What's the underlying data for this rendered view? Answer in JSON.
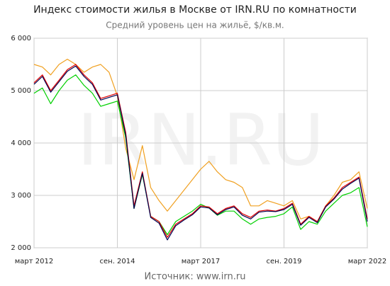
{
  "chart_data": {
    "type": "line",
    "title": "Индекс стоимости жилья в Москве от IRN.RU по комнатности",
    "subtitle": "Средний уровень цен на жильё, $/кв.м.",
    "source": "Источник: www.irn.ru",
    "watermark": "IRN.RU",
    "categories": [
      "март 2012",
      null,
      null,
      null,
      null,
      null,
      null,
      null,
      null,
      null,
      "сен. 2014",
      null,
      null,
      null,
      null,
      null,
      null,
      null,
      null,
      null,
      "март 2017",
      null,
      null,
      null,
      null,
      null,
      null,
      null,
      null,
      null,
      "сен. 2019",
      null,
      null,
      null,
      null,
      null,
      null,
      null,
      null,
      null,
      "март 2022"
    ],
    "series": [
      {
        "color": "#f0a020",
        "values": [
          5500,
          5450,
          5300,
          5500,
          5600,
          5500,
          5350,
          5450,
          5500,
          5350,
          4900,
          3900,
          3300,
          3950,
          3150,
          2900,
          2700,
          2900,
          3100,
          3300,
          3500,
          3650,
          3450,
          3300,
          3250,
          3150,
          2800,
          2800,
          2900,
          2850,
          2800,
          2900,
          2550,
          2600,
          2500,
          2800,
          3000,
          3250,
          3300,
          3450,
          2750
        ]
      },
      {
        "color": "#00d000",
        "values": [
          4950,
          5050,
          4750,
          5000,
          5200,
          5300,
          5100,
          4950,
          4700,
          4750,
          4800,
          4100,
          2750,
          3400,
          2600,
          2500,
          2250,
          2500,
          2600,
          2700,
          2830,
          2760,
          2620,
          2700,
          2700,
          2550,
          2450,
          2550,
          2580,
          2600,
          2650,
          2780,
          2350,
          2500,
          2450,
          2700,
          2850,
          3000,
          3050,
          3150,
          2400
        ]
      },
      {
        "color": "#e00000",
        "values": [
          5150,
          5300,
          5000,
          5200,
          5400,
          5500,
          5300,
          5150,
          4850,
          4900,
          4950,
          4200,
          2800,
          3450,
          2600,
          2500,
          2200,
          2450,
          2550,
          2650,
          2800,
          2780,
          2650,
          2750,
          2800,
          2650,
          2580,
          2700,
          2720,
          2700,
          2750,
          2850,
          2450,
          2600,
          2500,
          2800,
          2950,
          3150,
          3250,
          3350,
          2550
        ]
      },
      {
        "color": "#000050",
        "values": [
          5120,
          5270,
          4970,
          5170,
          5370,
          5470,
          5270,
          5120,
          4820,
          4870,
          4920,
          4150,
          2750,
          3420,
          2580,
          2470,
          2150,
          2420,
          2530,
          2630,
          2780,
          2760,
          2630,
          2730,
          2780,
          2620,
          2550,
          2680,
          2700,
          2690,
          2730,
          2830,
          2430,
          2580,
          2480,
          2780,
          2930,
          3120,
          3230,
          3330,
          2500
        ]
      }
    ],
    "ylim": [
      2000,
      6000
    ],
    "yticks": [
      {
        "value": 2000,
        "label": "2 000"
      },
      {
        "value": 3000,
        "label": "3 000"
      },
      {
        "value": 4000,
        "label": "4 000"
      },
      {
        "value": 5000,
        "label": "5 000"
      },
      {
        "value": 6000,
        "label": "6 000"
      }
    ],
    "grid": true
  }
}
